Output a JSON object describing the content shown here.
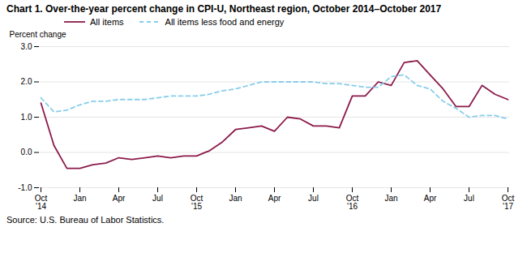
{
  "chart_data": {
    "type": "line",
    "title": "Chart 1. Over-the-year percent change in CPI-U, Northeast region, October 2014–October 2017",
    "ylabel": "Percent change",
    "annotations": [
      "Source: U.S. Bureau of Labor Statistics."
    ],
    "categories": [
      "Oct\n'14",
      null,
      null,
      "Jan",
      null,
      null,
      "Apr",
      null,
      null,
      "Jul",
      null,
      null,
      "Oct\n'15",
      null,
      null,
      "Jan",
      null,
      null,
      "Apr",
      null,
      null,
      "Jul",
      null,
      null,
      "Oct\n'16",
      null,
      null,
      "Jan",
      null,
      null,
      "Apr",
      null,
      null,
      "Jul",
      null,
      null,
      "Oct\n'17"
    ],
    "series": [
      {
        "name": "All items",
        "color": "#8B1A4A",
        "line_style": "solid",
        "values": [
          1.4,
          0.2,
          -0.45,
          -0.45,
          -0.35,
          -0.3,
          -0.15,
          -0.2,
          -0.15,
          -0.1,
          -0.15,
          -0.1,
          -0.1,
          0.05,
          0.3,
          0.65,
          0.7,
          0.75,
          0.6,
          1.0,
          0.95,
          0.75,
          0.75,
          0.7,
          1.6,
          1.6,
          2.0,
          1.9,
          2.55,
          2.6,
          2.2,
          1.8,
          1.3,
          1.3,
          1.9,
          1.65,
          1.5
        ]
      },
      {
        "name": "All items less food and energy",
        "color": "#87CEEB",
        "line_style": "dashed",
        "values": [
          1.55,
          1.15,
          1.2,
          1.35,
          1.45,
          1.45,
          1.5,
          1.5,
          1.5,
          1.55,
          1.6,
          1.6,
          1.6,
          1.65,
          1.75,
          1.8,
          1.9,
          2.0,
          2.0,
          2.0,
          2.0,
          2.0,
          1.95,
          1.95,
          1.9,
          1.85,
          1.85,
          2.15,
          2.2,
          1.9,
          1.8,
          1.45,
          1.25,
          1.0,
          1.05,
          1.05,
          0.95
        ]
      }
    ],
    "ylim": [
      -1.0,
      3.0
    ],
    "yticks": [
      {
        "value": -1.0,
        "label": "-1.0"
      },
      {
        "value": 0.0,
        "label": "0.0"
      },
      {
        "value": 1.0,
        "label": "1.0"
      },
      {
        "value": 2.0,
        "label": "2.0"
      },
      {
        "value": 3.0,
        "label": "3.0"
      }
    ],
    "grid": true,
    "legend": "top"
  }
}
